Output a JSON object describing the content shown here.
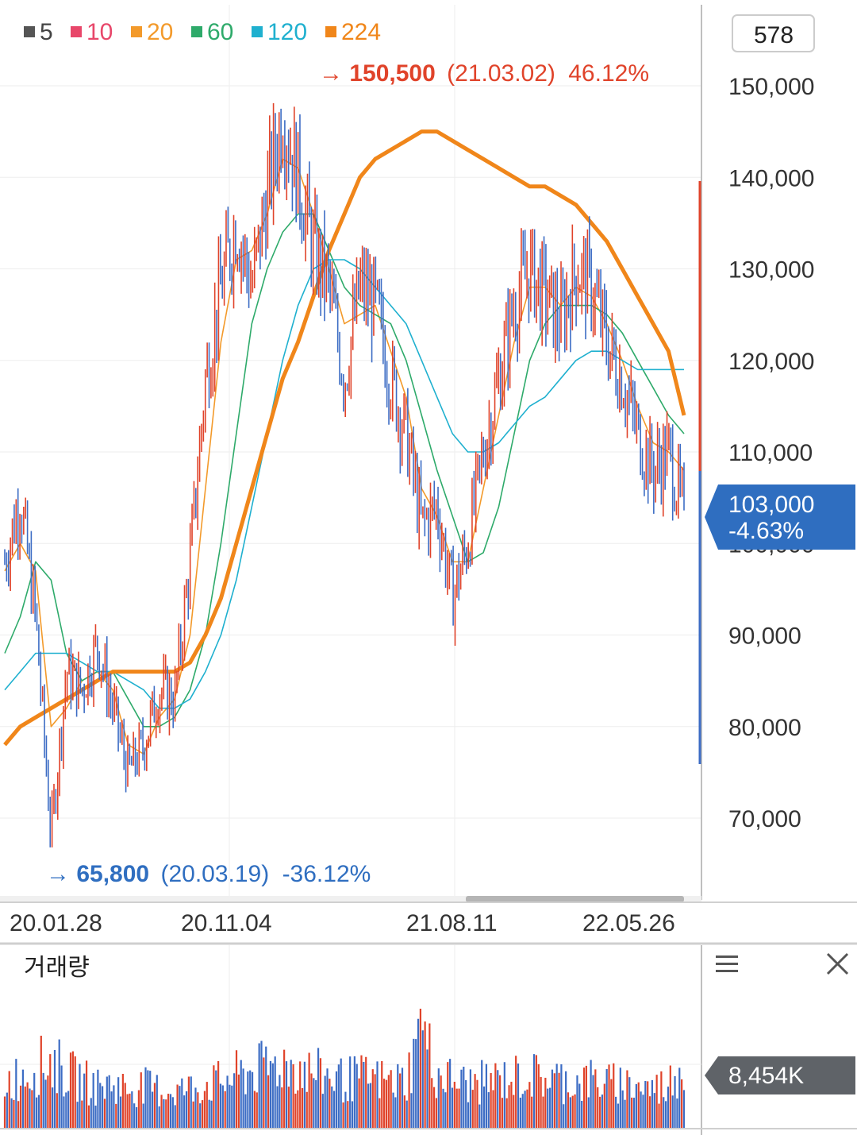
{
  "legend": [
    {
      "label": "5",
      "color": "#555555"
    },
    {
      "label": "10",
      "color": "#e8476a"
    },
    {
      "label": "20",
      "color": "#f39a2b"
    },
    {
      "label": "60",
      "color": "#2eaa6a"
    },
    {
      "label": "120",
      "color": "#1fb0cf"
    },
    {
      "label": "224",
      "color": "#f0861a"
    }
  ],
  "period_box": "578",
  "price_axis_labels": [
    "150,000",
    "140,000",
    "130,000",
    "120,000",
    "110,000",
    "100,000",
    "90,000",
    "80,000",
    "70,000"
  ],
  "date_labels": [
    "20.01.28",
    "20.11.04",
    "21.08.11",
    "22.05.26"
  ],
  "high_marker": {
    "arrow": "→",
    "price": "150,500",
    "date": "(21.03.02)",
    "pct": "46.12%"
  },
  "low_marker": {
    "arrow": "→",
    "price": "65,800",
    "date": "(20.03.19)",
    "pct": "-36.12%"
  },
  "current_price": {
    "price": "103,000",
    "pct": "-4.63%"
  },
  "volume_panel": {
    "title": "거래량",
    "current": "8,454K",
    "menu_icon": "menu-icon",
    "close_icon": "close-icon"
  },
  "colors": {
    "up": "#e0432a",
    "down": "#3c6cc4",
    "badge_blue": "#2f6ec0",
    "badge_gray": "#5f6368"
  },
  "chart_data": {
    "type": "line",
    "title": "",
    "ylim": [
      60000,
      160000
    ],
    "y_ticks": [
      70000,
      80000,
      90000,
      100000,
      110000,
      120000,
      130000,
      140000,
      150000
    ],
    "x_ticks": [
      "20.01.28",
      "20.11.04",
      "21.08.11",
      "22.05.26"
    ],
    "price_series": {
      "name": "price",
      "x": [
        "20.01.02",
        "20.01.28",
        "20.02.25",
        "20.03.19",
        "20.04.20",
        "20.05.20",
        "20.06.22",
        "20.07.20",
        "20.08.20",
        "20.09.21",
        "20.10.20",
        "20.11.04",
        "20.11.23",
        "20.12.07",
        "20.12.22",
        "21.01.08",
        "21.01.25",
        "21.02.10",
        "21.03.02",
        "21.03.22",
        "21.04.12",
        "21.05.03",
        "21.05.24",
        "21.06.14",
        "21.07.05",
        "21.07.26",
        "21.08.11",
        "21.08.30",
        "21.09.20",
        "21.10.12",
        "21.11.01",
        "21.11.22",
        "21.12.13",
        "22.01.04",
        "22.01.24",
        "22.02.15",
        "22.03.07",
        "22.03.28",
        "22.04.18",
        "22.05.09",
        "22.05.26",
        "22.06.15",
        "22.07.05",
        "22.07.25",
        "22.08.12"
      ],
      "values": [
        98000,
        105000,
        92000,
        68000,
        86000,
        84000,
        89000,
        82000,
        75000,
        78000,
        84000,
        83000,
        98000,
        118000,
        128000,
        135000,
        128000,
        138000,
        147000,
        140000,
        132000,
        128000,
        118000,
        128000,
        126000,
        118000,
        112000,
        102000,
        104000,
        94000,
        100000,
        110000,
        118000,
        126000,
        130000,
        127000,
        124000,
        130000,
        128000,
        122000,
        118000,
        112000,
        108000,
        110000,
        103000
      ]
    },
    "moving_averages": [
      {
        "name": "20",
        "values": [
          97000,
          100000,
          97000,
          80000,
          82000,
          85000,
          86000,
          84000,
          78000,
          77000,
          81000,
          83000,
          90000,
          106000,
          122000,
          131000,
          132000,
          136000,
          142000,
          141000,
          136000,
          130000,
          124000,
          125000,
          126000,
          121000,
          116000,
          106000,
          103000,
          98000,
          98000,
          106000,
          114000,
          122000,
          128000,
          128000,
          126000,
          128000,
          127000,
          124000,
          120000,
          115000,
          111000,
          110000,
          108000
        ]
      },
      {
        "name": "60",
        "values": [
          88000,
          92000,
          98000,
          96000,
          88000,
          85000,
          86000,
          86000,
          83000,
          80000,
          80000,
          81000,
          84000,
          90000,
          100000,
          112000,
          124000,
          130000,
          134000,
          136000,
          136000,
          132000,
          128000,
          126000,
          125000,
          124000,
          120000,
          114000,
          108000,
          103000,
          98000,
          99000,
          104000,
          112000,
          120000,
          124000,
          126000,
          126000,
          126000,
          125000,
          123000,
          120000,
          117000,
          114000,
          112000
        ]
      },
      {
        "name": "120",
        "values": [
          84000,
          86000,
          88000,
          88000,
          88000,
          87000,
          86000,
          86000,
          85000,
          84000,
          82000,
          82000,
          83000,
          86000,
          90000,
          96000,
          104000,
          112000,
          120000,
          126000,
          130000,
          131000,
          131000,
          130000,
          128000,
          126000,
          124000,
          120000,
          116000,
          112000,
          110000,
          110000,
          111000,
          113000,
          115000,
          116000,
          118000,
          120000,
          121000,
          121000,
          120000,
          119000,
          119000,
          119000,
          119000
        ]
      },
      {
        "name": "224",
        "values": [
          78000,
          80000,
          81000,
          82000,
          83000,
          84000,
          85000,
          86000,
          86000,
          86000,
          86000,
          86000,
          87000,
          90000,
          94000,
          100000,
          106000,
          112000,
          118000,
          122000,
          127000,
          132000,
          136000,
          140000,
          142000,
          143000,
          144000,
          145000,
          145000,
          144000,
          143000,
          142000,
          141000,
          140000,
          139000,
          139000,
          138000,
          137000,
          135000,
          133000,
          130000,
          127000,
          124000,
          121000,
          114000
        ]
      }
    ],
    "annotations": [
      {
        "text": "150,500 (21.03.02) 46.12%",
        "value": 150500
      },
      {
        "text": "65,800 (20.03.19) -36.12%",
        "value": 65800
      }
    ],
    "volume": {
      "title": "거래량",
      "current": "8,454K",
      "values": [
        42,
        48,
        55,
        62,
        50,
        44,
        38,
        40,
        36,
        38,
        35,
        34,
        36,
        40,
        42,
        48,
        52,
        55,
        60,
        56,
        50,
        48,
        44,
        46,
        45,
        42,
        44,
        88,
        50,
        44,
        40,
        42,
        44,
        46,
        48,
        46,
        44,
        42,
        44,
        40,
        42,
        38,
        36,
        40,
        62
      ]
    }
  }
}
